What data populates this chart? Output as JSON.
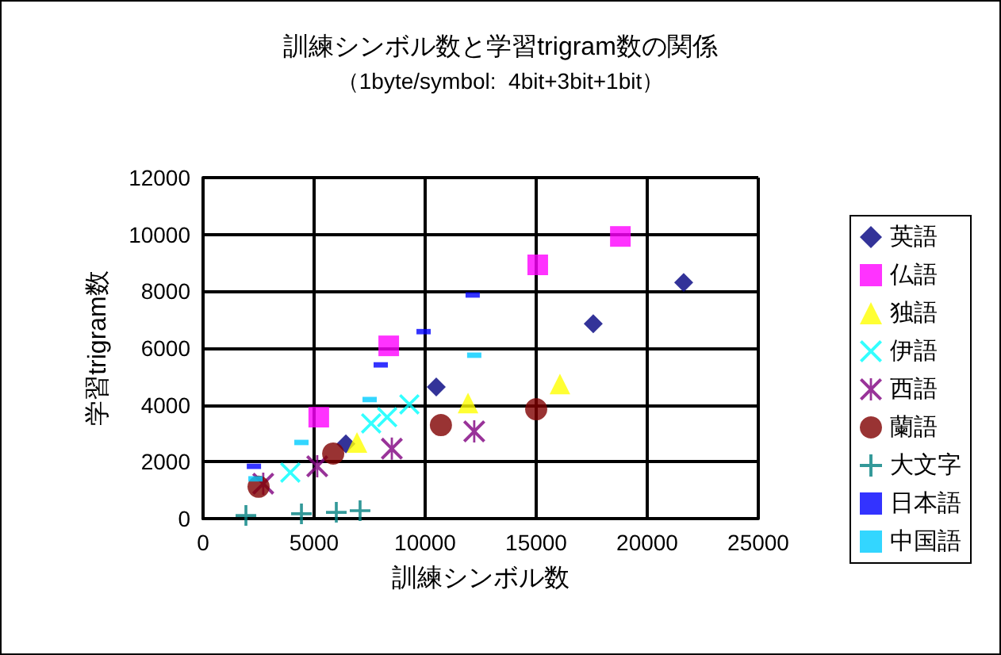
{
  "chart_data": {
    "type": "scatter",
    "title": "訓練シンボル数と学習trigram数の関係",
    "subtitle": "（1byte/symbol:  4bit+3bit+1bit）",
    "xlabel": "訓練シンボル数",
    "ylabel": "学習trigram数",
    "xlim": [
      0,
      25000
    ],
    "xticks": [
      0,
      5000,
      10000,
      15000,
      20000,
      25000
    ],
    "ylim": [
      0,
      12000
    ],
    "yticks": [
      0,
      2000,
      4000,
      6000,
      8000,
      10000,
      12000
    ],
    "grid": true,
    "legend": "right",
    "series": [
      {
        "name": "英語",
        "color": "#000080",
        "marker": "diamond",
        "x": [
          6430,
          10500,
          17570,
          21640
        ],
        "values": [
          2630,
          4630,
          6860,
          8310
        ]
      },
      {
        "name": "仏語",
        "color": "#ff00ff",
        "marker": "square",
        "x": [
          5210,
          8360,
          15070,
          18790
        ],
        "values": [
          3570,
          6080,
          8930,
          9930
        ]
      },
      {
        "name": "独語",
        "color": "#ffff00",
        "marker": "triangle",
        "x": [
          6930,
          11930,
          16070
        ],
        "values": [
          2680,
          4070,
          4740
        ]
      },
      {
        "name": "伊語",
        "color": "#00ffff",
        "marker": "x",
        "x": [
          3930,
          7570,
          8290,
          9290
        ],
        "values": [
          1620,
          3350,
          3570,
          4020
        ]
      },
      {
        "name": "西語",
        "color": "#800080",
        "marker": "asterisk",
        "x": [
          2710,
          5140,
          8500,
          12210
        ],
        "values": [
          1230,
          1840,
          2460,
          3070
        ]
      },
      {
        "name": "蘭語",
        "color": "#800000",
        "marker": "circle",
        "x": [
          2500,
          5860,
          10710,
          15000
        ],
        "values": [
          1120,
          2290,
          3290,
          3850
        ]
      },
      {
        "name": "大文字",
        "color": "#008080",
        "marker": "plus",
        "x": [
          1930,
          4430,
          6000,
          7070
        ],
        "values": [
          110,
          170,
          220,
          280
        ]
      },
      {
        "name": "日本語",
        "color": "#0000ff",
        "marker": "square",
        "x": [
          2290,
          8000,
          9930,
          12140
        ],
        "values": [
          1840,
          5410,
          6580,
          7870
        ]
      },
      {
        "name": "中国語",
        "color": "#00ccff",
        "marker": "square",
        "x": [
          2360,
          4430,
          7500,
          12210
        ],
        "values": [
          1400,
          2680,
          4190,
          5750
        ]
      }
    ]
  }
}
